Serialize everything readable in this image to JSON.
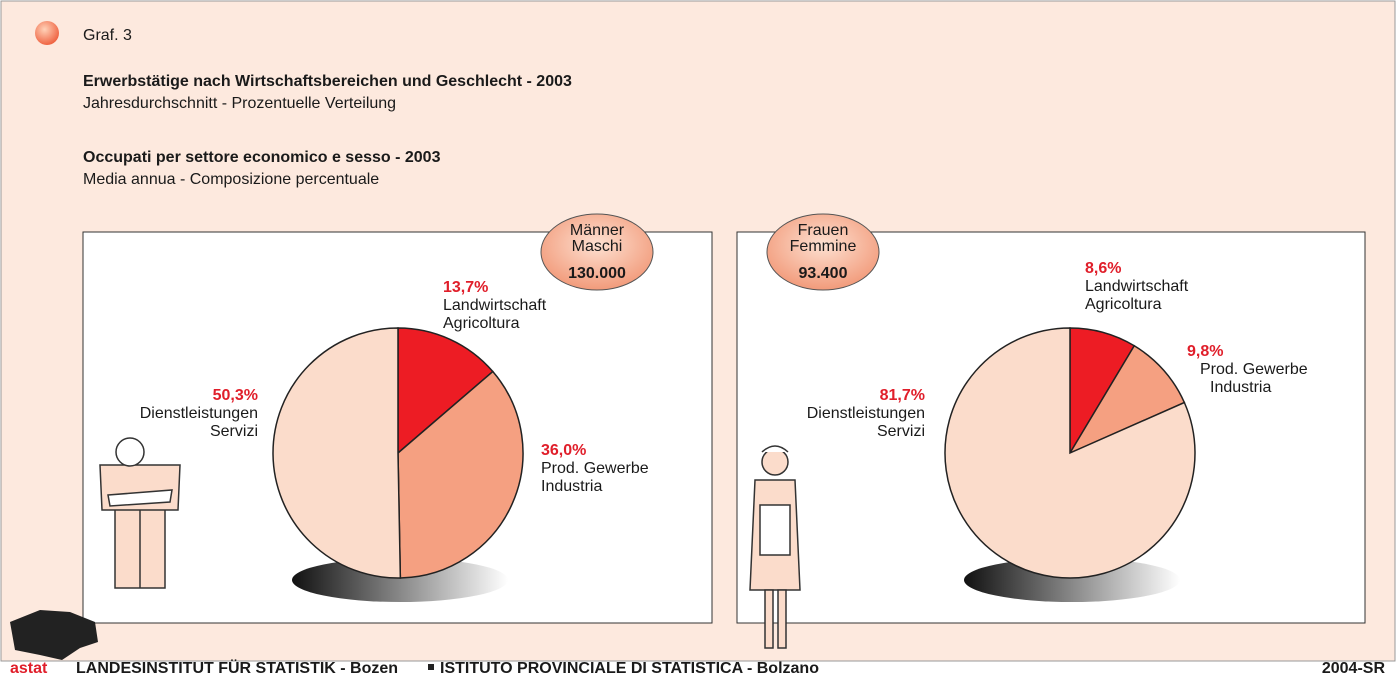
{
  "graf": "Graf. 3",
  "title_de": "Erwerbstätige nach Wirtschaftsbereichen und Geschlecht - 2003",
  "subtitle_de": "Jahresdurchschnitt - Prozentuelle Verteilung",
  "title_it": "Occupati per settore economico e sesso - 2003",
  "subtitle_it": "Media annua - Composizione percentuale",
  "chart_data": [
    {
      "type": "pie",
      "group": [
        "Männer",
        "Maschi"
      ],
      "total": "130.000",
      "categories": [
        [
          "Landwirtschaft",
          "Agricoltura"
        ],
        [
          "Prod. Gewerbe",
          "Industria"
        ],
        [
          "Dienstleistungen",
          "Servizi"
        ]
      ],
      "values": [
        13.7,
        36.0,
        50.3
      ],
      "value_labels": [
        "13,7%",
        "36,0%",
        "50,3%"
      ],
      "colors": [
        "#ed1c24",
        "#f5a081",
        "#fbdccb"
      ]
    },
    {
      "type": "pie",
      "group": [
        "Frauen",
        "Femmine"
      ],
      "total": "93.400",
      "categories": [
        [
          "Landwirtschaft",
          "Agricoltura"
        ],
        [
          "Prod. Gewerbe",
          "Industria"
        ],
        [
          "Dienstleistungen",
          "Servizi"
        ]
      ],
      "values": [
        8.6,
        9.8,
        81.7
      ],
      "value_labels": [
        "8,6%",
        "9,8%",
        "81,7%"
      ],
      "colors": [
        "#ed1c24",
        "#f5a081",
        "#fbdccb"
      ]
    }
  ],
  "footer": {
    "logo": "astat",
    "left": "LANDESINSTITUT FÜR STATISTIK - Bozen",
    "middle": "ISTITUTO PROVINCIALE DI STATISTICA - Bolzano",
    "right": "2004-SR"
  }
}
